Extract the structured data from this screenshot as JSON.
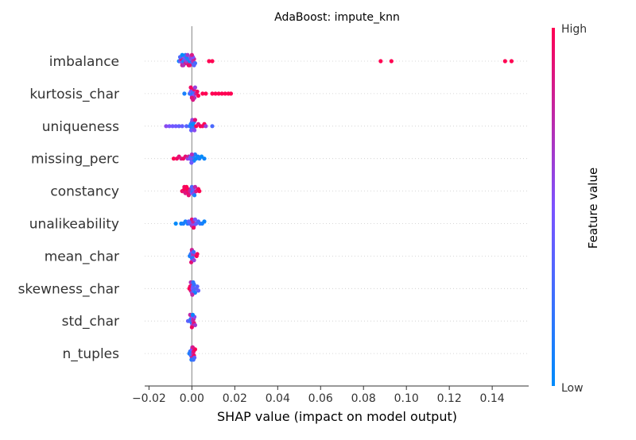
{
  "chart_data": {
    "type": "scatter",
    "title": "AdaBoost: impute_knn",
    "xlabel": "SHAP value (impact on model output)",
    "xlim": [
      -0.022,
      0.157
    ],
    "xticks": [
      "−0.02",
      "0.00",
      "0.02",
      "0.04",
      "0.06",
      "0.08",
      "0.10",
      "0.12",
      "0.14"
    ],
    "xtick_values": [
      -0.02,
      0.0,
      0.02,
      0.04,
      0.06,
      0.08,
      0.1,
      0.12,
      0.14
    ],
    "grid": "horizontal dotted row guides",
    "colorbar": {
      "label": "Feature value",
      "high_label": "High",
      "low_label": "Low",
      "low_color": "#008bfb",
      "mid_color": "#7c52ff",
      "high_color": "#ff0052"
    },
    "features": [
      {
        "name": "imbalance",
        "points": [
          [
            -0.006,
            0.0
          ],
          [
            -0.0055,
            0.4
          ],
          [
            -0.005,
            0.9
          ],
          [
            -0.0045,
            0.55
          ],
          [
            -0.004,
            0.15
          ],
          [
            -0.0035,
            0.35
          ],
          [
            -0.003,
            0.85
          ],
          [
            -0.0025,
            0.6
          ],
          [
            -0.002,
            0.2
          ],
          [
            -0.0015,
            0.75
          ],
          [
            -0.001,
            0.05
          ],
          [
            -0.0005,
            0.45
          ],
          [
            0.0,
            0.3
          ],
          [
            0.0005,
            0.7
          ],
          [
            0.001,
            0.8
          ],
          [
            0.0015,
            0.25
          ],
          [
            -0.0055,
            0.3
          ],
          [
            -0.0045,
            0.8
          ],
          [
            -0.0035,
            0.5
          ],
          [
            -0.0025,
            0.1
          ],
          [
            -0.0015,
            0.95
          ],
          [
            -0.0005,
            0.6
          ],
          [
            0.0005,
            0.5
          ],
          [
            -0.004,
            0.7
          ],
          [
            -0.003,
            0.2
          ],
          [
            -0.002,
            0.65
          ],
          [
            -0.001,
            0.9
          ],
          [
            0.0,
            0.85
          ],
          [
            0.001,
            0.35
          ],
          [
            -0.0045,
            0.0
          ],
          [
            0.008,
            1.0
          ],
          [
            0.0095,
            1.0
          ],
          [
            0.088,
            1.0
          ],
          [
            0.093,
            1.0
          ],
          [
            0.146,
            1.0
          ],
          [
            0.149,
            1.0
          ]
        ]
      },
      {
        "name": "kurtosis_char",
        "points": [
          [
            -0.0035,
            0.1
          ],
          [
            -0.001,
            0.2
          ],
          [
            -0.0005,
            0.5
          ],
          [
            0.0,
            0.4
          ],
          [
            0.0,
            0.6
          ],
          [
            0.0003,
            0.15
          ],
          [
            0.0005,
            0.3
          ],
          [
            0.0008,
            0.5
          ],
          [
            0.001,
            0.9
          ],
          [
            0.0012,
            0.7
          ],
          [
            0.0015,
            0.6
          ],
          [
            0.002,
            0.8
          ],
          [
            0.0025,
            0.95
          ],
          [
            0.0,
            0.9
          ],
          [
            -0.0005,
            0.95
          ],
          [
            0.0005,
            0.85
          ],
          [
            0.003,
            1.0
          ],
          [
            0.005,
            1.0
          ],
          [
            0.0065,
            1.0
          ],
          [
            0.0095,
            1.0
          ],
          [
            0.011,
            1.0
          ],
          [
            0.0125,
            1.0
          ],
          [
            0.014,
            1.0
          ],
          [
            0.0155,
            1.0
          ],
          [
            0.017,
            1.0
          ],
          [
            0.0182,
            1.0
          ]
        ]
      },
      {
        "name": "uniqueness",
        "points": [
          [
            -0.012,
            0.55
          ],
          [
            -0.0105,
            0.5
          ],
          [
            -0.009,
            0.45
          ],
          [
            -0.0075,
            0.45
          ],
          [
            -0.006,
            0.4
          ],
          [
            -0.0045,
            0.4
          ],
          [
            -0.0025,
            0.35
          ],
          [
            -0.001,
            0.2
          ],
          [
            -0.0005,
            0.1
          ],
          [
            0.0,
            0.05
          ],
          [
            0.0,
            0.3
          ],
          [
            0.0003,
            0.15
          ],
          [
            0.0005,
            0.0
          ],
          [
            0.0008,
            0.25
          ],
          [
            0.001,
            0.1
          ],
          [
            -0.0003,
            0.4
          ],
          [
            0.0002,
            0.6
          ],
          [
            0.0012,
            0.55
          ],
          [
            0.0015,
            0.9
          ],
          [
            0.002,
            1.0
          ],
          [
            0.003,
            0.85
          ],
          [
            0.004,
            1.0
          ],
          [
            0.005,
            0.95
          ],
          [
            0.0058,
            1.0
          ],
          [
            0.0065,
            0.6
          ],
          [
            0.0095,
            0.3
          ]
        ]
      },
      {
        "name": "missing_perc",
        "points": [
          [
            -0.0085,
            1.0
          ],
          [
            -0.007,
            0.95
          ],
          [
            -0.006,
            0.9
          ],
          [
            -0.005,
            0.85
          ],
          [
            -0.004,
            0.95
          ],
          [
            -0.003,
            0.9
          ],
          [
            -0.002,
            0.6
          ],
          [
            -0.0015,
            0.8
          ],
          [
            -0.001,
            0.5
          ],
          [
            -0.0005,
            0.4
          ],
          [
            0.0,
            0.3
          ],
          [
            0.0003,
            0.55
          ],
          [
            0.0006,
            0.2
          ],
          [
            0.001,
            0.1
          ],
          [
            0.0015,
            0.15
          ],
          [
            0.002,
            0.0
          ],
          [
            0.0028,
            0.05
          ],
          [
            0.0035,
            0.1
          ],
          [
            0.0045,
            0.0
          ],
          [
            0.0058,
            0.05
          ],
          [
            0.0,
            0.7
          ],
          [
            -0.0002,
            0.45
          ]
        ]
      },
      {
        "name": "constancy",
        "points": [
          [
            -0.0045,
            1.0
          ],
          [
            -0.004,
            0.9
          ],
          [
            -0.0035,
            1.0
          ],
          [
            -0.003,
            0.85
          ],
          [
            -0.0025,
            0.9
          ],
          [
            -0.002,
            1.0
          ],
          [
            -0.0015,
            0.95
          ],
          [
            -0.001,
            0.8
          ],
          [
            -0.0005,
            0.7
          ],
          [
            0.0,
            0.5
          ],
          [
            0.0,
            0.3
          ],
          [
            0.0003,
            0.2
          ],
          [
            0.0005,
            0.4
          ],
          [
            0.001,
            0.6
          ],
          [
            0.0015,
            0.75
          ],
          [
            0.002,
            0.85
          ],
          [
            0.003,
            0.95
          ],
          [
            0.0035,
            1.0
          ],
          [
            -0.0035,
            0.95
          ],
          [
            -0.0025,
            1.0
          ],
          [
            -0.0015,
            0.9
          ],
          [
            0.0012,
            0.1
          ]
        ]
      },
      {
        "name": "unalikeability",
        "points": [
          [
            -0.0075,
            0.0
          ],
          [
            -0.005,
            0.05
          ],
          [
            -0.004,
            0.1
          ],
          [
            -0.003,
            0.1
          ],
          [
            -0.002,
            0.15
          ],
          [
            -0.001,
            0.3
          ],
          [
            -0.0005,
            0.5
          ],
          [
            0.0,
            0.7
          ],
          [
            0.0,
            0.9
          ],
          [
            0.0003,
            0.6
          ],
          [
            0.0006,
            0.8
          ],
          [
            0.001,
            0.55
          ],
          [
            0.0015,
            0.45
          ],
          [
            0.002,
            0.4
          ],
          [
            0.003,
            0.3
          ],
          [
            0.0038,
            0.2
          ],
          [
            0.0048,
            0.1
          ],
          [
            0.0058,
            0.05
          ],
          [
            -0.0015,
            0.35
          ],
          [
            0.0008,
            0.95
          ]
        ]
      },
      {
        "name": "mean_char",
        "points": [
          [
            -0.001,
            0.1
          ],
          [
            -0.0005,
            0.2
          ],
          [
            0.0,
            0.3
          ],
          [
            0.0,
            0.5
          ],
          [
            0.0002,
            0.4
          ],
          [
            0.0004,
            0.6
          ],
          [
            0.0006,
            0.7
          ],
          [
            0.0,
            0.8
          ],
          [
            -0.0003,
            0.9
          ],
          [
            0.0003,
            0.15
          ],
          [
            0.0008,
            0.25
          ],
          [
            0.001,
            0.6
          ],
          [
            0.0022,
            1.0
          ],
          [
            0.0025,
            0.95
          ]
        ]
      },
      {
        "name": "skewness_char",
        "points": [
          [
            -0.0012,
            1.0
          ],
          [
            -0.0008,
            0.95
          ],
          [
            -0.0005,
            0.9
          ],
          [
            0.0,
            0.85
          ],
          [
            0.0,
            0.6
          ],
          [
            0.0003,
            0.5
          ],
          [
            0.0005,
            0.4
          ],
          [
            0.0008,
            0.3
          ],
          [
            0.001,
            0.2
          ],
          [
            0.0015,
            0.1
          ],
          [
            0.002,
            0.3
          ],
          [
            0.0025,
            0.35
          ],
          [
            0.003,
            0.4
          ],
          [
            -0.0005,
            0.7
          ],
          [
            0.0002,
            0.75
          ],
          [
            0.0006,
            0.2
          ]
        ]
      },
      {
        "name": "std_char",
        "points": [
          [
            -0.0018,
            0.4
          ],
          [
            -0.001,
            0.3
          ],
          [
            -0.0005,
            0.2
          ],
          [
            0.0,
            0.1
          ],
          [
            0.0,
            0.5
          ],
          [
            0.0002,
            0.6
          ],
          [
            0.0005,
            0.7
          ],
          [
            0.0008,
            0.8
          ],
          [
            0.001,
            0.9
          ],
          [
            0.0012,
            0.55
          ],
          [
            0.0015,
            0.65
          ],
          [
            -0.0008,
            0.75
          ],
          [
            0.0,
            0.95
          ],
          [
            0.0004,
            0.05
          ]
        ]
      },
      {
        "name": "n_tuples",
        "points": [
          [
            -0.0012,
            0.1
          ],
          [
            -0.0008,
            0.2
          ],
          [
            -0.0004,
            0.3
          ],
          [
            0.0,
            0.5
          ],
          [
            0.0,
            0.8
          ],
          [
            0.0002,
            0.6
          ],
          [
            0.0005,
            0.7
          ],
          [
            0.0008,
            0.9
          ],
          [
            0.001,
            0.95
          ],
          [
            0.0015,
            1.0
          ],
          [
            0.0012,
            0.4
          ],
          [
            -0.0002,
            0.15
          ],
          [
            0.0004,
            0.85
          ],
          [
            0.0007,
            0.25
          ]
        ]
      }
    ]
  }
}
